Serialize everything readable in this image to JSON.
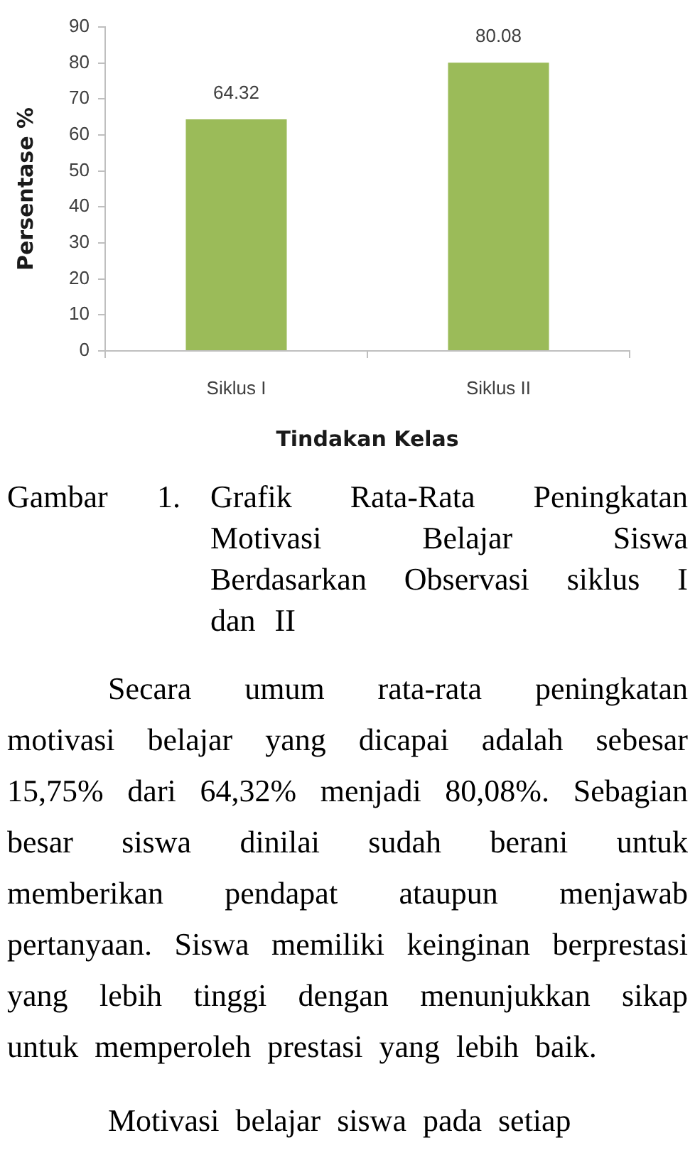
{
  "chart_data": {
    "type": "bar",
    "xlabel": "Tindakan Kelas",
    "ylabel": "Persentase %",
    "categories": [
      "Siklus I",
      "Siklus II"
    ],
    "values": [
      64.32,
      80.08
    ],
    "color": "#9bbb59",
    "ylim": [
      0,
      90
    ],
    "yticks": [
      0,
      10,
      20,
      30,
      40,
      50,
      60,
      70,
      80,
      90
    ],
    "data_labels": true,
    "annotations": [
      "Gambar 1.",
      "Grafik Rata-Rata Peningkatan Motivasi Belajar Siswa Berdasarkan Observasi siklus I dan II",
      "Secara umum rata-rata peningkatan motivasi belajar yang dicapai adalah sebesar 15,75% dari 64,32% menjadi 80,08%. Sebagian besar siswa dinilai sudah berani untuk memberikan pendapat ataupun menjawab pertanyaan. Siswa memiliki keinginan berprestasi yang lebih tinggi dengan menunjukkan sikap untuk memperoleh prestasi yang lebih baik.",
      "Motivasi belajar siswa pada setiap"
    ]
  }
}
